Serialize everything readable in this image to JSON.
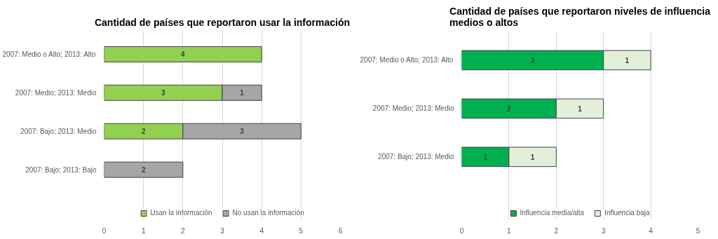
{
  "chart_data": [
    {
      "type": "bar",
      "title": "Cantidad de países que reportaron usar la información",
      "orientation": "horizontal",
      "stacked": true,
      "data_labels": true,
      "grid": "x",
      "legend": "bottom",
      "categories": [
        "2007: Medio o Alto; 2013: Alto",
        "2007: Medio; 2013: Medio",
        "2007: Bajo; 2013: Medio",
        "2007: Bajo; 2013: Bajo"
      ],
      "xlim": [
        0,
        6
      ],
      "xticks": [
        0,
        1,
        2,
        3,
        4,
        5,
        6
      ],
      "series": [
        {
          "name": "Usan la información",
          "color": "#92d050",
          "values": [
            4,
            3,
            2,
            null
          ]
        },
        {
          "name": "No usan la información",
          "color": "#a6a6a6",
          "values": [
            null,
            1,
            3,
            2
          ]
        }
      ]
    },
    {
      "type": "bar",
      "title": "Cantidad de países que reportaron niveles de influencia medios o altos",
      "orientation": "horizontal",
      "stacked": true,
      "data_labels": true,
      "grid": "x",
      "legend": "bottom",
      "categories": [
        "2007: Medio o Alto; 2013: Alto",
        "2007: Medio; 2013: Medio",
        "2007: Bajo; 2013: Medio"
      ],
      "xlim": [
        0,
        5
      ],
      "xticks": [
        0,
        1,
        2,
        3,
        4,
        5
      ],
      "series": [
        {
          "name": "Influencia media/alta",
          "color": "#00b050",
          "values": [
            3,
            2,
            1
          ]
        },
        {
          "name": "Influencia baja",
          "color": "#e2f0d9",
          "values": [
            1,
            1,
            1
          ]
        }
      ]
    }
  ]
}
